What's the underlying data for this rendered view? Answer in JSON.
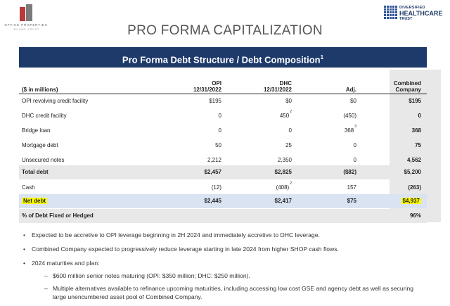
{
  "logos": {
    "left_name": "OFFICE PROPERTIES",
    "left_sub": "INCOME TRUST",
    "right_line1": "DIVERSIFIED",
    "right_line2": "HEALTHCARE",
    "right_line3": "TRUST"
  },
  "page_title": "PRO FORMA CAPITALIZATION",
  "banner": {
    "title": "Pro Forma Debt Structure / Debt Composition",
    "sup": "1"
  },
  "table": {
    "header": {
      "label": "($ in millions)",
      "col1_l1": "OPI",
      "col1_l2": "12/31/2022",
      "col2_l1": "DHC",
      "col2_l2": "12/31/2022",
      "col3": "Adj.",
      "col4_l1": "Combined",
      "col4_l2": "Company"
    },
    "rows": [
      {
        "label": "OPI revolving credit facility",
        "opi": "$195",
        "dhc": "$0",
        "adj": "$0",
        "combined": "$195"
      },
      {
        "label": "DHC credit facility",
        "opi": "0",
        "dhc": "450",
        "dhc_note": "2",
        "adj": "(450)",
        "combined": "0"
      },
      {
        "label": "Bridge loan",
        "opi": "0",
        "dhc": "0",
        "adj": "368",
        "adj_note": "3",
        "combined": "368"
      },
      {
        "label": "Mortgage debt",
        "opi": "50",
        "dhc": "25",
        "adj": "0",
        "combined": "75"
      },
      {
        "label": "Unsecured notes",
        "opi": "2,212",
        "dhc": "2,350",
        "adj": "0",
        "combined": "4,562"
      },
      {
        "label": "Total debt",
        "opi": "$2,457",
        "dhc": "$2,825",
        "adj": "($82)",
        "combined": "$5,200"
      },
      {
        "label": "Cash",
        "opi": "(12)",
        "dhc": "(408)",
        "dhc_note": "2",
        "adj": "157",
        "combined": "(263)"
      },
      {
        "label": "Net debt",
        "opi": "$2,445",
        "dhc": "$2,417",
        "adj": "$75",
        "combined": "$4,937"
      },
      {
        "label": "% of Debt Fixed or Hedged",
        "combined": "96%"
      }
    ]
  },
  "bullets": [
    "Expected to be accretive to OPI leverage beginning in 2H 2024 and immediately accretive to DHC leverage.",
    "Combined Company expected to progressively reduce leverage starting in late 2024 from higher SHOP cash flows.",
    "2024 maturities and plan:"
  ],
  "sub_bullets": [
    "$600 million senior notes maturing (OPI: $350 million; DHC: $250 million).",
    "Multiple alternatives available to refinance upcoming maturities, including accessing low cost GSE and agency debt as well as securing large unencumbered asset pool of Combined Company."
  ],
  "colors": {
    "navy": "#1d3a6b",
    "highlight": "#ffff00",
    "blue_row": "#d9e3f1",
    "gray": "#e8e8e8"
  }
}
